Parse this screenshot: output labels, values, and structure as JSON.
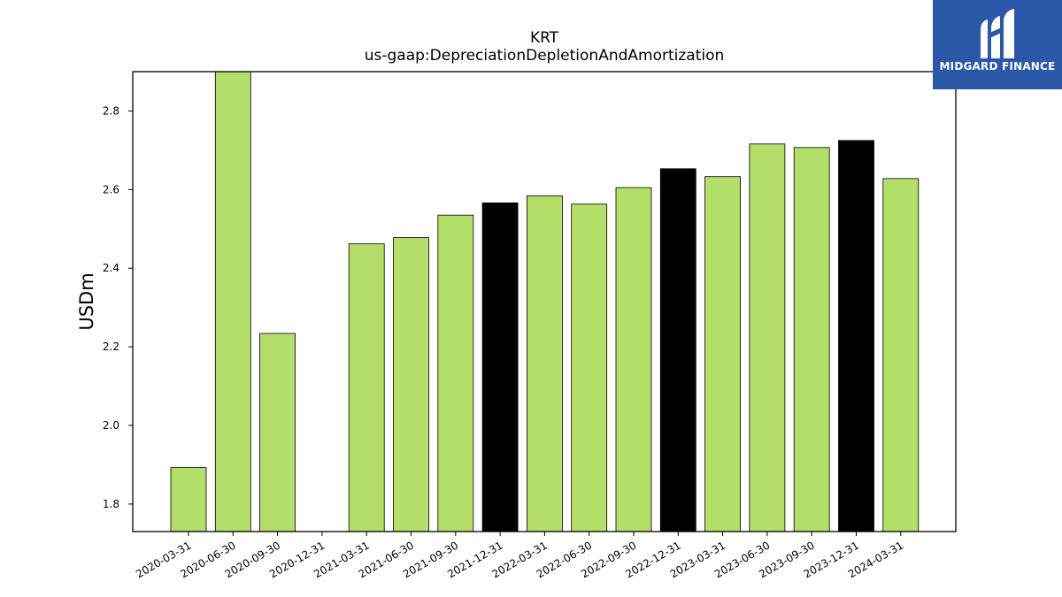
{
  "brand": {
    "name": "MIDGARD FINANCE",
    "logo_icon": "midgard-m-logo-icon",
    "background": "#2b57a8"
  },
  "chart_data": {
    "type": "bar",
    "title": "KRT",
    "subtitle": "us-gaap:DepreciationDepletionAndAmortization",
    "xlabel": "",
    "ylabel": "USDm",
    "ylim": [
      1.73,
      2.9
    ],
    "yticks": [
      "1.8",
      "2.0",
      "2.2",
      "2.4",
      "2.6",
      "2.8"
    ],
    "grid": false,
    "colors": {
      "regular": "#b3de69",
      "year_end": "#000000",
      "edge": "#000000"
    },
    "categories": [
      "2020-03-31",
      "2020-06-30",
      "2020-09-30",
      "2020-12-31",
      "2021-03-31",
      "2021-06-30",
      "2021-09-30",
      "2021-12-31",
      "2022-03-31",
      "2022-06-30",
      "2022-09-30",
      "2022-12-31",
      "2023-03-31",
      "2023-06-30",
      "2023-09-30",
      "2023-12-31",
      "2024-03-31"
    ],
    "values": [
      1.893,
      2.9,
      2.234,
      null,
      2.462,
      2.478,
      2.535,
      2.566,
      2.584,
      2.563,
      2.605,
      2.653,
      2.633,
      2.716,
      2.707,
      2.725,
      2.628
    ],
    "highlight": [
      false,
      false,
      false,
      false,
      false,
      false,
      false,
      true,
      false,
      false,
      false,
      true,
      false,
      false,
      false,
      true,
      false
    ]
  }
}
